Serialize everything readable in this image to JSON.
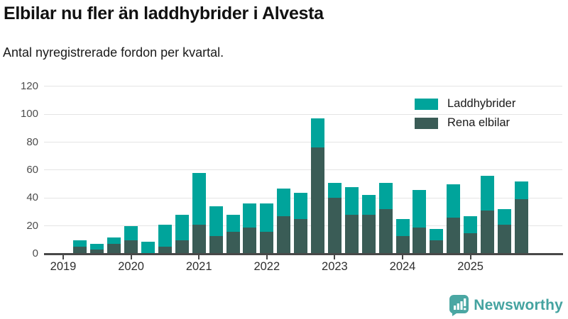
{
  "header": {
    "title": "Elbilar nu fler än laddhybrider i Alvesta",
    "subtitle": "Antal nyregistrerade fordon per kvartal."
  },
  "chart_data": {
    "type": "bar",
    "stacked": true,
    "title": "Elbilar nu fler än laddhybrider i Alvesta",
    "subtitle": "Antal nyregistrerade fordon per kvartal.",
    "categories": [
      "2019 Q1",
      "2019 Q2",
      "2019 Q3",
      "2019 Q4",
      "2020 Q1",
      "2020 Q2",
      "2020 Q3",
      "2020 Q4",
      "2021 Q1",
      "2021 Q2",
      "2021 Q3",
      "2021 Q4",
      "2022 Q1",
      "2022 Q2",
      "2022 Q3",
      "2022 Q4",
      "2023 Q1",
      "2023 Q2",
      "2023 Q3",
      "2023 Q4",
      "2024 Q1",
      "2024 Q2",
      "2024 Q3",
      "2024 Q4",
      "2025 Q1",
      "2025 Q2",
      "2025 Q3",
      "2025 Q4"
    ],
    "series": [
      {
        "name": "Rena elbilar",
        "stack_position": "bottom",
        "color": "#3a5c56",
        "values": [
          0,
          5,
          3,
          7,
          10,
          0,
          5,
          10,
          21,
          13,
          16,
          19,
          16,
          27,
          25,
          76,
          40,
          28,
          28,
          32,
          13,
          19,
          10,
          26,
          15,
          31,
          21,
          39
        ]
      },
      {
        "name": "Laddhybrider",
        "stack_position": "top",
        "color": "#00a49b",
        "values": [
          0,
          5,
          4,
          5,
          10,
          9,
          16,
          18,
          37,
          21,
          12,
          17,
          20,
          20,
          19,
          21,
          11,
          20,
          14,
          19,
          12,
          27,
          8,
          24,
          12,
          25,
          11,
          13
        ]
      }
    ],
    "totals": [
      0,
      10,
      7,
      12,
      20,
      9,
      21,
      28,
      58,
      34,
      28,
      36,
      36,
      47,
      44,
      97,
      51,
      48,
      42,
      51,
      25,
      46,
      18,
      50,
      27,
      56,
      32,
      52
    ],
    "legend": [
      {
        "label": "Laddhybrider",
        "color": "#00a49b"
      },
      {
        "label": "Rena elbilar",
        "color": "#3a5c56"
      }
    ],
    "legend_position": "top-right",
    "ylim": [
      0,
      120
    ],
    "yticks": [
      0,
      20,
      40,
      60,
      80,
      100,
      120
    ],
    "xtick_labels": [
      "2019",
      "2020",
      "2021",
      "2022",
      "2023",
      "2024",
      "2025"
    ],
    "grid": "horizontal"
  },
  "branding": {
    "logo_text": "Newsworthy",
    "logo_color": "#44a3a0"
  },
  "colors": {
    "laddhybrider": "#00a49b",
    "rena_elbilar": "#3a5c56",
    "gridline": "#e4e4e4",
    "axis_line": "#484848",
    "title_text": "#111111",
    "axis_label": "#4d4d4d"
  }
}
